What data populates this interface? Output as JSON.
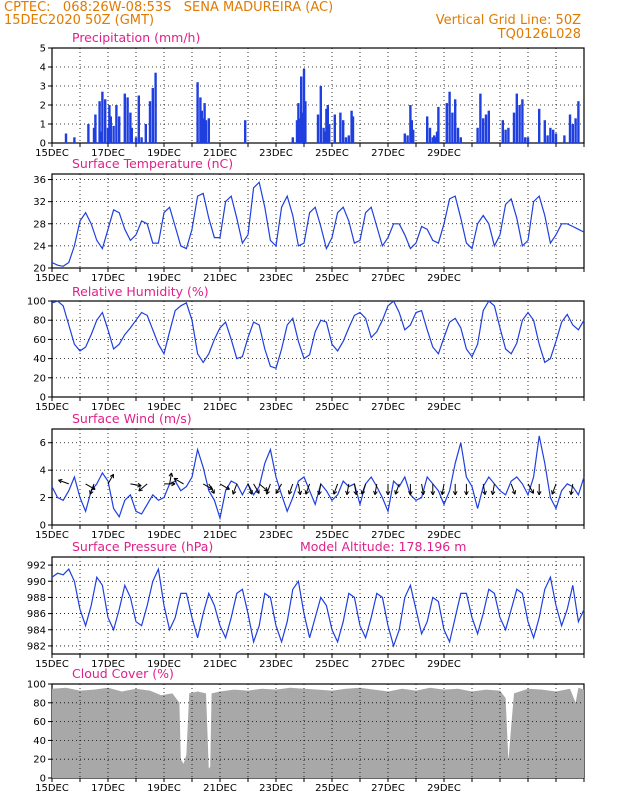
{
  "header": {
    "line1_left": "CPTEC:   068:26W-08:53S   SENA MADUREIRA (AC)",
    "line2_left": "15DEC2020 50Z (GMT)",
    "line2_right": "Vertical Grid Line: 50Z",
    "line3_right": "TQ0126L028"
  },
  "colors": {
    "header_text": "#e07b00",
    "panel_title": "#e0208a",
    "series": "#1f3fe0",
    "cloud_fill": "#a8a8a8",
    "grid": "#000000"
  },
  "date_labels": [
    "15DEC",
    "17DEC",
    "19DEC",
    "21DEC",
    "23DEC",
    "25DEC",
    "27DEC",
    "29DEC"
  ],
  "chart_data": [
    {
      "id": "precip",
      "type": "bar",
      "title": "Precipitation (mm/h)",
      "ylim": [
        0,
        5
      ],
      "yticks": [
        "0",
        "1",
        "2",
        "3",
        "4",
        "5"
      ],
      "x_days": [
        0.5,
        0.8,
        1.3,
        1.5,
        1.55,
        1.7,
        1.75,
        1.8,
        1.9,
        2.0,
        2.05,
        2.1,
        2.2,
        2.3,
        2.4,
        2.6,
        2.7,
        2.8,
        2.85,
        3.0,
        3.1,
        3.2,
        3.35,
        3.5,
        3.6,
        3.7,
        5.2,
        5.3,
        5.35,
        5.4,
        5.45,
        5.5,
        5.6,
        6.9,
        8.6,
        8.75,
        8.8,
        8.85,
        8.9,
        8.95,
        9.0,
        9.05,
        9.5,
        9.6,
        9.7,
        9.75,
        9.8,
        9.85,
        9.9,
        10.1,
        10.3,
        10.4,
        10.5,
        10.6,
        10.7,
        10.75,
        12.6,
        12.7,
        12.8,
        12.85,
        12.9,
        13.4,
        13.5,
        13.6,
        13.65,
        13.7,
        13.75,
        13.8,
        14.1,
        14.2,
        14.3,
        14.4,
        14.5,
        14.6,
        15.2,
        15.3,
        15.4,
        15.5,
        15.6,
        16.1,
        16.2,
        16.3,
        16.5,
        16.6,
        16.7,
        16.8,
        16.9,
        17.0,
        17.4,
        17.6,
        17.7,
        17.8,
        17.9,
        18.0,
        18.3,
        18.5,
        18.6,
        18.7,
        18.8
      ],
      "values": [
        0.5,
        0.3,
        1.0,
        0.8,
        1.5,
        2.2,
        0.6,
        2.7,
        2.3,
        0.8,
        2.0,
        1.4,
        0.9,
        2.0,
        1.4,
        2.6,
        2.4,
        1.6,
        0.8,
        0.3,
        2.5,
        0.3,
        1.0,
        2.2,
        2.9,
        3.7,
        3.2,
        2.4,
        1.7,
        1.3,
        2.1,
        1.2,
        1.3,
        1.2,
        0.3,
        1.2,
        2.1,
        1.3,
        3.5,
        1.6,
        3.9,
        2.2,
        1.5,
        3.0,
        0.8,
        0.6,
        1.8,
        2.0,
        1.0,
        1.5,
        1.6,
        1.2,
        0.3,
        0.4,
        1.7,
        1.4,
        0.5,
        0.4,
        2.0,
        1.2,
        0.7,
        1.4,
        0.8,
        0.3,
        0.4,
        0.3,
        0.6,
        1.9,
        2.1,
        2.7,
        1.6,
        2.3,
        0.8,
        0.3,
        0.8,
        2.6,
        1.3,
        1.5,
        1.7,
        1.2,
        0.7,
        0.8,
        1.6,
        2.6,
        2.0,
        2.3,
        0.3,
        0.3,
        1.8,
        1.2,
        0.4,
        0.8,
        0.7,
        0.5,
        0.4,
        1.5,
        1.0,
        1.3,
        2.2
      ]
    },
    {
      "id": "temp",
      "type": "line",
      "title": "Surface Temperature (nC)",
      "ylim": [
        20,
        37
      ],
      "yticks": [
        "20",
        "24",
        "28",
        "32",
        "36"
      ],
      "x_days": [
        0,
        0.2,
        0.4,
        0.6,
        0.8,
        1.0,
        1.2,
        1.4,
        1.6,
        1.8,
        2.0,
        2.2,
        2.4,
        2.6,
        2.8,
        3.0,
        3.2,
        3.4,
        3.6,
        3.8,
        4.0,
        4.2,
        4.4,
        4.6,
        4.8,
        5.0,
        5.2,
        5.4,
        5.6,
        5.8,
        6.0,
        6.2,
        6.4,
        6.6,
        6.8,
        7.0,
        7.2,
        7.4,
        7.6,
        7.8,
        8.0,
        8.2,
        8.4,
        8.6,
        8.8,
        9.0,
        9.2,
        9.4,
        9.6,
        9.8,
        10.0,
        10.2,
        10.4,
        10.6,
        10.8,
        11.0,
        11.2,
        11.4,
        11.6,
        11.8,
        12.0,
        12.2,
        12.4,
        12.6,
        12.8,
        13.0,
        13.2,
        13.4,
        13.6,
        13.8,
        14.0,
        14.2,
        14.4,
        14.6,
        14.8,
        15.0,
        15.2,
        15.4,
        15.6,
        15.8,
        16.0,
        16.2,
        16.4,
        16.6,
        16.8,
        17.0,
        17.2,
        17.4,
        17.6,
        17.8,
        18.0,
        18.2,
        18.4,
        18.6,
        18.8,
        19.0
      ],
      "values": [
        21,
        20.5,
        20.3,
        21,
        24,
        28.5,
        30,
        28,
        25,
        23.5,
        27,
        30.5,
        30,
        27,
        25,
        26,
        28.5,
        28,
        24.5,
        24.5,
        30,
        31,
        27.5,
        24,
        23.5,
        27,
        33,
        33.5,
        29,
        25.5,
        25.5,
        32,
        33,
        29,
        24.5,
        26,
        34.5,
        35.5,
        31,
        25,
        24,
        31,
        33,
        29.5,
        24,
        24.5,
        30,
        31,
        27.5,
        23.5,
        25.5,
        30,
        31,
        28.5,
        24.5,
        25,
        30,
        31,
        27.5,
        24,
        25.5,
        28,
        28,
        26,
        23.5,
        24.5,
        27.5,
        27,
        25,
        24.5,
        28,
        32.5,
        33,
        29,
        24.5,
        23.5,
        28,
        29.5,
        28,
        24,
        26,
        31.5,
        32.5,
        29,
        24,
        25,
        32,
        33,
        29.5,
        24.5,
        26,
        28,
        28,
        27.5,
        27,
        26.5
      ]
    },
    {
      "id": "rh",
      "type": "line",
      "title": "Relative Humidity (%)",
      "ylim": [
        0,
        100
      ],
      "yticks": [
        "0",
        "20",
        "40",
        "60",
        "80",
        "100"
      ],
      "x_days": [
        0,
        0.2,
        0.4,
        0.6,
        0.8,
        1.0,
        1.2,
        1.4,
        1.6,
        1.8,
        2.0,
        2.2,
        2.4,
        2.6,
        2.8,
        3.0,
        3.2,
        3.4,
        3.6,
        3.8,
        4.0,
        4.2,
        4.4,
        4.6,
        4.8,
        5.0,
        5.2,
        5.4,
        5.6,
        5.8,
        6.0,
        6.2,
        6.4,
        6.6,
        6.8,
        7.0,
        7.2,
        7.4,
        7.6,
        7.8,
        8.0,
        8.2,
        8.4,
        8.6,
        8.8,
        9.0,
        9.2,
        9.4,
        9.6,
        9.8,
        10.0,
        10.2,
        10.4,
        10.6,
        10.8,
        11.0,
        11.2,
        11.4,
        11.6,
        11.8,
        12.0,
        12.2,
        12.4,
        12.6,
        12.8,
        13.0,
        13.2,
        13.4,
        13.6,
        13.8,
        14.0,
        14.2,
        14.4,
        14.6,
        14.8,
        15.0,
        15.2,
        15.4,
        15.6,
        15.8,
        16.0,
        16.2,
        16.4,
        16.6,
        16.8,
        17.0,
        17.2,
        17.4,
        17.6,
        17.8,
        18.0,
        18.2,
        18.4,
        18.6,
        18.8,
        19.0
      ],
      "values": [
        98,
        100,
        95,
        75,
        55,
        48,
        52,
        65,
        80,
        88,
        70,
        50,
        55,
        65,
        72,
        80,
        88,
        85,
        70,
        55,
        45,
        68,
        90,
        95,
        98,
        80,
        45,
        36,
        45,
        60,
        72,
        78,
        60,
        40,
        42,
        62,
        78,
        75,
        50,
        32,
        30,
        50,
        75,
        82,
        58,
        40,
        44,
        68,
        80,
        78,
        55,
        48,
        58,
        72,
        85,
        88,
        82,
        62,
        68,
        80,
        95,
        100,
        88,
        70,
        75,
        88,
        90,
        70,
        52,
        45,
        62,
        78,
        82,
        72,
        50,
        42,
        55,
        90,
        100,
        95,
        72,
        50,
        45,
        56,
        80,
        88,
        80,
        55,
        36,
        40,
        58,
        78,
        86,
        75,
        70,
        80
      ]
    },
    {
      "id": "wind",
      "type": "line",
      "title": "Surface Wind (m/s)",
      "ylim": [
        0,
        7
      ],
      "yticks": [
        "0",
        "2",
        "4",
        "6"
      ],
      "x_days": [
        0,
        0.2,
        0.4,
        0.6,
        0.8,
        1.0,
        1.2,
        1.4,
        1.6,
        1.8,
        2.0,
        2.2,
        2.4,
        2.6,
        2.8,
        3.0,
        3.2,
        3.4,
        3.6,
        3.8,
        4.0,
        4.2,
        4.4,
        4.6,
        4.8,
        5.0,
        5.2,
        5.4,
        5.6,
        5.8,
        6.0,
        6.2,
        6.4,
        6.6,
        6.8,
        7.0,
        7.2,
        7.4,
        7.6,
        7.8,
        8.0,
        8.2,
        8.4,
        8.6,
        8.8,
        9.0,
        9.2,
        9.4,
        9.6,
        9.8,
        10.0,
        10.2,
        10.4,
        10.6,
        10.8,
        11.0,
        11.2,
        11.4,
        11.6,
        11.8,
        12.0,
        12.2,
        12.4,
        12.6,
        12.8,
        13.0,
        13.2,
        13.4,
        13.6,
        13.8,
        14.0,
        14.2,
        14.4,
        14.6,
        14.8,
        15.0,
        15.2,
        15.4,
        15.6,
        15.8,
        16.0,
        16.2,
        16.4,
        16.6,
        16.8,
        17.0,
        17.2,
        17.4,
        17.6,
        17.8,
        18.0,
        18.2,
        18.4,
        18.6,
        18.8,
        19.0
      ],
      "values": [
        2.8,
        2.0,
        1.8,
        2.5,
        3.5,
        2.0,
        1.0,
        2.5,
        3.0,
        3.8,
        3.2,
        1.2,
        0.6,
        1.8,
        2.2,
        1.0,
        0.8,
        1.5,
        2.2,
        1.8,
        2.0,
        3.0,
        3.2,
        2.5,
        2.8,
        3.5,
        5.5,
        4.2,
        2.5,
        1.8,
        0.5,
        2.5,
        3.2,
        3.0,
        2.2,
        3.0,
        2.2,
        2.8,
        4.5,
        5.5,
        3.5,
        2.2,
        1.0,
        2.0,
        3.2,
        3.5,
        2.5,
        1.5,
        3.0,
        2.5,
        1.8,
        2.2,
        3.2,
        2.8,
        3.0,
        1.5,
        3.0,
        3.5,
        2.8,
        2.0,
        1.0,
        3.2,
        2.8,
        3.5,
        2.2,
        1.8,
        2.0,
        3.5,
        3.0,
        2.5,
        1.5,
        2.5,
        4.5,
        6.0,
        3.5,
        2.8,
        1.2,
        2.8,
        3.5,
        3.0,
        2.5,
        2.2,
        3.2,
        3.5,
        3.0,
        2.2,
        3.5,
        6.5,
        4.5,
        2.0,
        1.2,
        2.5,
        3.0,
        2.8,
        2.2,
        3.5
      ],
      "arrows": [
        {
          "day": 0.6,
          "dir_deg": 290
        },
        {
          "day": 1.2,
          "dir_deg": 120
        },
        {
          "day": 1.5,
          "dir_deg": 200
        },
        {
          "day": 2.0,
          "dir_deg": 30
        },
        {
          "day": 2.8,
          "dir_deg": 100
        },
        {
          "day": 3.4,
          "dir_deg": 230
        },
        {
          "day": 4.0,
          "dir_deg": 90
        },
        {
          "day": 4.2,
          "dir_deg": 10
        },
        {
          "day": 4.7,
          "dir_deg": 300
        },
        {
          "day": 5.4,
          "dir_deg": 120
        },
        {
          "day": 5.6,
          "dir_deg": 150
        },
        {
          "day": 6.0,
          "dir_deg": 120
        },
        {
          "day": 6.6,
          "dir_deg": 200
        },
        {
          "day": 7.0,
          "dir_deg": 160
        },
        {
          "day": 7.2,
          "dir_deg": 150
        },
        {
          "day": 7.4,
          "dir_deg": 130
        },
        {
          "day": 7.8,
          "dir_deg": 200
        },
        {
          "day": 8.2,
          "dir_deg": 210
        },
        {
          "day": 8.6,
          "dir_deg": 200
        },
        {
          "day": 8.8,
          "dir_deg": 170
        },
        {
          "day": 9.2,
          "dir_deg": 200
        },
        {
          "day": 9.6,
          "dir_deg": 190
        },
        {
          "day": 10.2,
          "dir_deg": 200
        },
        {
          "day": 10.6,
          "dir_deg": 190
        },
        {
          "day": 10.8,
          "dir_deg": 170
        },
        {
          "day": 11.2,
          "dir_deg": 200
        },
        {
          "day": 11.6,
          "dir_deg": 190
        },
        {
          "day": 12.0,
          "dir_deg": 180
        },
        {
          "day": 12.4,
          "dir_deg": 200
        },
        {
          "day": 12.8,
          "dir_deg": 180
        },
        {
          "day": 13.2,
          "dir_deg": 170
        },
        {
          "day": 13.6,
          "dir_deg": 180
        },
        {
          "day": 14.0,
          "dir_deg": 190
        },
        {
          "day": 14.4,
          "dir_deg": 180
        },
        {
          "day": 14.8,
          "dir_deg": 180
        },
        {
          "day": 15.4,
          "dir_deg": 170
        },
        {
          "day": 15.8,
          "dir_deg": 190
        },
        {
          "day": 16.4,
          "dir_deg": 160
        },
        {
          "day": 17.0,
          "dir_deg": 150
        },
        {
          "day": 17.4,
          "dir_deg": 180
        },
        {
          "day": 18.0,
          "dir_deg": 200
        },
        {
          "day": 18.6,
          "dir_deg": 190
        }
      ]
    },
    {
      "id": "pressure",
      "type": "line",
      "title": "Surface Pressure (hPa)",
      "subtitle": "Model Altitude: 178.196 m",
      "ylim": [
        981,
        993
      ],
      "yticks": [
        "982",
        "984",
        "986",
        "988",
        "990",
        "992"
      ],
      "x_days": [
        0,
        0.2,
        0.4,
        0.6,
        0.8,
        1.0,
        1.2,
        1.4,
        1.6,
        1.8,
        2.0,
        2.2,
        2.4,
        2.6,
        2.8,
        3.0,
        3.2,
        3.4,
        3.6,
        3.8,
        4.0,
        4.2,
        4.4,
        4.6,
        4.8,
        5.0,
        5.2,
        5.4,
        5.6,
        5.8,
        6.0,
        6.2,
        6.4,
        6.6,
        6.8,
        7.0,
        7.2,
        7.4,
        7.6,
        7.8,
        8.0,
        8.2,
        8.4,
        8.6,
        8.8,
        9.0,
        9.2,
        9.4,
        9.6,
        9.8,
        10.0,
        10.2,
        10.4,
        10.6,
        10.8,
        11.0,
        11.2,
        11.4,
        11.6,
        11.8,
        12.0,
        12.2,
        12.4,
        12.6,
        12.8,
        13.0,
        13.2,
        13.4,
        13.6,
        13.8,
        14.0,
        14.2,
        14.4,
        14.6,
        14.8,
        15.0,
        15.2,
        15.4,
        15.6,
        15.8,
        16.0,
        16.2,
        16.4,
        16.6,
        16.8,
        17.0,
        17.2,
        17.4,
        17.6,
        17.8,
        18.0,
        18.2,
        18.4,
        18.6,
        18.8,
        19.0
      ],
      "values": [
        990.5,
        991,
        990.8,
        991.5,
        990,
        986.5,
        984.5,
        987,
        990.5,
        989.5,
        985.5,
        984,
        986.5,
        989.5,
        988,
        985,
        984.5,
        987,
        990,
        991.5,
        987,
        984,
        985.5,
        988.5,
        988.5,
        985.5,
        983,
        986,
        988.5,
        987,
        984.5,
        983,
        985.5,
        988.5,
        989,
        986,
        982.5,
        984.5,
        988.5,
        988,
        984.5,
        982.5,
        985,
        989,
        990,
        986,
        983,
        985.5,
        988,
        987,
        984,
        982.5,
        985,
        988.5,
        988,
        984.5,
        983,
        985.5,
        988.5,
        988,
        984.5,
        982,
        984,
        988,
        989.5,
        986.5,
        983.5,
        985,
        988,
        987.5,
        984,
        982.5,
        985.5,
        988.5,
        988.5,
        985.5,
        983.5,
        986,
        989,
        988.5,
        985.5,
        984,
        986.5,
        989,
        988.5,
        985,
        983,
        985.5,
        989,
        990.5,
        987,
        984.5,
        986.5,
        989.5,
        985,
        986.5
      ]
    },
    {
      "id": "cloud",
      "type": "area",
      "title": "Cloud Cover (%)",
      "ylim": [
        0,
        100
      ],
      "yticks": [
        "0",
        "20",
        "40",
        "60",
        "80",
        "100"
      ],
      "x_days": [
        0,
        0.5,
        1.0,
        1.5,
        2.0,
        2.5,
        3.0,
        3.5,
        3.9,
        4.3,
        4.55,
        4.6,
        4.7,
        4.8,
        4.9,
        5.2,
        5.5,
        5.6,
        5.65,
        5.7,
        6.0,
        6.5,
        7.0,
        7.5,
        8.0,
        8.5,
        9.0,
        9.5,
        10.0,
        10.5,
        11.0,
        11.5,
        12.0,
        12.5,
        13.0,
        13.5,
        14.0,
        14.5,
        15.0,
        15.5,
        16.0,
        16.2,
        16.3,
        16.4,
        16.5,
        16.8,
        17.0,
        17.5,
        18.0,
        18.5,
        18.7,
        18.8,
        19.0
      ],
      "values": [
        95,
        96,
        93,
        94,
        96,
        92,
        95,
        93,
        88,
        90,
        80,
        20,
        15,
        25,
        90,
        92,
        90,
        10,
        12,
        90,
        92,
        94,
        93,
        95,
        94,
        96,
        95,
        94,
        93,
        95,
        96,
        94,
        92,
        95,
        93,
        96,
        94,
        95,
        92,
        94,
        93,
        85,
        18,
        55,
        90,
        93,
        95,
        94,
        92,
        95,
        80,
        96,
        94
      ]
    }
  ]
}
